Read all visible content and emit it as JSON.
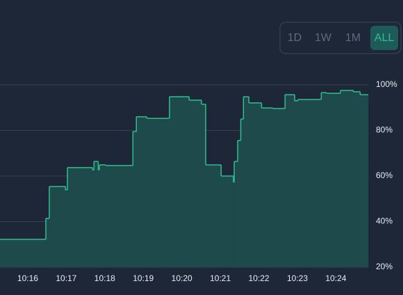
{
  "controls": {
    "ranges": [
      "1D",
      "1W",
      "1M",
      "ALL"
    ]
  },
  "chart_data": {
    "type": "step-area",
    "x": [
      15.28,
      16.47,
      16.56,
      16.98,
      17.03,
      17.68,
      17.72,
      17.83,
      17.86,
      18.02,
      18.38,
      18.73,
      18.82,
      19.09,
      19.68,
      20.19,
      20.51,
      20.62,
      21.02,
      21.34,
      21.36,
      21.45,
      21.53,
      21.6,
      21.74,
      22.07,
      22.36,
      22.68,
      22.93,
      23.01,
      23.62,
      23.76,
      24.12,
      24.45,
      24.63
    ],
    "series": [
      {
        "color": "#2fbf8f",
        "values": [
          32.2,
          41.4,
          55.4,
          53.9,
          63.7,
          62.7,
          66.4,
          62.7,
          64.9,
          64.6,
          64.6,
          79.5,
          86,
          85.3,
          94.8,
          93.3,
          91.5,
          64.9,
          60,
          57.3,
          66.4,
          75.6,
          85,
          94.8,
          92.1,
          89.9,
          89.6,
          95.7,
          93,
          93.6,
          96.6,
          96.3,
          97.6,
          97,
          95.7
        ]
      }
    ],
    "xlim": [
      15.28,
      24.84
    ],
    "xticks": [
      {
        "value": 16,
        "label": "10:16"
      },
      {
        "value": 17,
        "label": "10:17"
      },
      {
        "value": 18,
        "label": "10:18"
      },
      {
        "value": 19,
        "label": "10:19"
      },
      {
        "value": 20,
        "label": "10:20"
      },
      {
        "value": 21,
        "label": "10:21"
      },
      {
        "value": 22,
        "label": "10:22"
      },
      {
        "value": 23,
        "label": "10:23"
      },
      {
        "value": 24,
        "label": "10:24"
      }
    ],
    "ylim": [
      20,
      100
    ],
    "yticks": [
      {
        "value": 20,
        "label": "20%"
      },
      {
        "value": 40,
        "label": "40%"
      },
      {
        "value": 60,
        "label": "60%"
      },
      {
        "value": 80,
        "label": "80%"
      },
      {
        "value": 100,
        "label": "100%"
      }
    ],
    "grid": true
  }
}
